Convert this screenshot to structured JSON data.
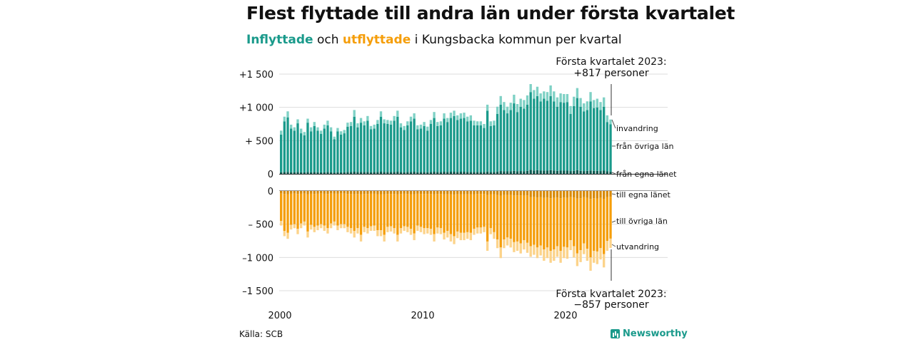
{
  "title": "Flest flyttade till andra län under första kvartalet",
  "subtitle": {
    "part1": "Inflyttade",
    "part2": " och ",
    "part3": "utflyttade",
    "part4": " i Kungsbacka kommun per kvartal"
  },
  "source": "Källa: SCB",
  "logo": "Newsworthy",
  "colors": {
    "in_main": "#1a9a8b",
    "in_light": "#7fd1c5",
    "in_dark": "#0d5b52",
    "out_main": "#f59e0b",
    "out_light": "#fcd38a",
    "out_dark": "#d98a06"
  },
  "chart_data": {
    "type": "bar",
    "stacked": true,
    "x_start": 2000,
    "x_step_label": "kvartal",
    "xticks": [
      "2000",
      "2010",
      "2020"
    ],
    "yticks_top": [
      "+1 500",
      "+1 000",
      "+  500",
      "0"
    ],
    "yticks_bottom": [
      "0",
      "–  500",
      "–1 000",
      "–1 500"
    ],
    "ylim_top": [
      0,
      1500
    ],
    "ylim_bottom": [
      -1500,
      0
    ],
    "grid": true,
    "series_labels": {
      "invandring": "invandring",
      "fran_ovriga": "från övriga län",
      "fran_egna": "från egna länet",
      "till_egna": "till egna länet",
      "till_ovriga": "till övriga län",
      "utvandring": "utvandring"
    },
    "annotation_top": {
      "line1": "Första kvartalet 2023:",
      "line2": "+817 personer"
    },
    "annotation_bottom": {
      "line1": "Första kvartalet 2023:",
      "line2": "−857 personer"
    },
    "in_totals": [
      650,
      860,
      940,
      740,
      700,
      820,
      680,
      630,
      830,
      700,
      780,
      700,
      650,
      740,
      800,
      700,
      560,
      690,
      640,
      660,
      770,
      780,
      960,
      760,
      840,
      790,
      870,
      720,
      740,
      810,
      940,
      820,
      810,
      800,
      870,
      950,
      760,
      720,
      790,
      860,
      910,
      730,
      740,
      780,
      710,
      810,
      930,
      780,
      790,
      910,
      840,
      920,
      950,
      880,
      910,
      920,
      860,
      880,
      800,
      790,
      790,
      750,
      1040,
      790,
      800,
      1010,
      1170,
      1080,
      1010,
      1070,
      1190,
      1050,
      1130,
      1110,
      1180,
      1350,
      1260,
      1310,
      1210,
      1240,
      1230,
      1330,
      1240,
      1150,
      1210,
      1200,
      1200,
      1020,
      1160,
      1290,
      1140,
      1060,
      1090,
      1230,
      1110,
      1130,
      1080,
      1150,
      880,
      817
    ],
    "in_immigration": [
      60,
      70,
      90,
      60,
      50,
      60,
      70,
      50,
      60,
      60,
      60,
      50,
      50,
      60,
      70,
      60,
      40,
      50,
      50,
      50,
      60,
      60,
      100,
      60,
      70,
      60,
      70,
      50,
      60,
      60,
      80,
      60,
      60,
      60,
      70,
      90,
      60,
      60,
      60,
      70,
      80,
      60,
      60,
      60,
      60,
      60,
      90,
      60,
      60,
      80,
      60,
      80,
      80,
      70,
      80,
      80,
      70,
      80,
      70,
      60,
      60,
      60,
      90,
      70,
      70,
      110,
      130,
      120,
      100,
      110,
      130,
      120,
      120,
      130,
      140,
      120,
      130,
      140,
      120,
      110,
      130,
      160,
      150,
      140,
      130,
      130,
      120,
      120,
      140,
      150,
      130,
      120,
      130,
      140,
      120,
      130,
      120,
      140,
      100,
      70
    ],
    "in_own": [
      25,
      28,
      30,
      25,
      25,
      28,
      25,
      22,
      28,
      25,
      28,
      25,
      22,
      25,
      28,
      25,
      20,
      25,
      22,
      25,
      28,
      28,
      32,
      28,
      30,
      28,
      30,
      25,
      28,
      28,
      32,
      28,
      28,
      28,
      30,
      32,
      28,
      25,
      28,
      30,
      32,
      25,
      28,
      28,
      25,
      28,
      32,
      28,
      28,
      32,
      30,
      32,
      32,
      30,
      32,
      32,
      30,
      30,
      28,
      28,
      28,
      28,
      35,
      28,
      28,
      35,
      42,
      40,
      38,
      40,
      45,
      40,
      42,
      40,
      45,
      60,
      50,
      55,
      48,
      50,
      48,
      55,
      50,
      45,
      48,
      48,
      48,
      42,
      45,
      55,
      45,
      42,
      45,
      50,
      45,
      45,
      42,
      48,
      38,
      35
    ],
    "out_totals": [
      520,
      680,
      720,
      580,
      560,
      650,
      560,
      520,
      700,
      580,
      620,
      590,
      560,
      600,
      640,
      560,
      520,
      590,
      560,
      560,
      620,
      640,
      700,
      640,
      760,
      620,
      640,
      600,
      600,
      680,
      680,
      760,
      620,
      610,
      640,
      760,
      640,
      600,
      620,
      660,
      740,
      600,
      620,
      650,
      640,
      660,
      760,
      640,
      650,
      730,
      700,
      760,
      800,
      710,
      740,
      740,
      720,
      740,
      660,
      640,
      640,
      620,
      900,
      650,
      720,
      860,
      1010,
      860,
      820,
      850,
      920,
      900,
      940,
      880,
      930,
      990,
      960,
      1010,
      970,
      1050,
      1010,
      1080,
      1050,
      990,
      1080,
      1010,
      1020,
      890,
      1000,
      1130,
      1070,
      950,
      1050,
      1200,
      1080,
      1100,
      1030,
      1150,
      900,
      857
    ],
    "out_emigration": [
      70,
      80,
      90,
      70,
      60,
      80,
      70,
      60,
      90,
      70,
      80,
      70,
      60,
      80,
      80,
      70,
      60,
      70,
      60,
      60,
      80,
      80,
      100,
      80,
      100,
      80,
      80,
      70,
      80,
      90,
      90,
      100,
      80,
      80,
      80,
      100,
      80,
      70,
      80,
      90,
      100,
      80,
      80,
      90,
      80,
      90,
      110,
      90,
      90,
      100,
      100,
      110,
      120,
      100,
      110,
      110,
      100,
      110,
      90,
      90,
      90,
      80,
      140,
      90,
      100,
      130,
      160,
      130,
      120,
      130,
      150,
      140,
      150,
      140,
      150,
      160,
      150,
      160,
      150,
      170,
      160,
      180,
      170,
      160,
      180,
      170,
      170,
      150,
      170,
      190,
      180,
      160,
      180,
      200,
      180,
      190,
      170,
      200,
      150,
      140
    ],
    "out_own": [
      40,
      45,
      48,
      42,
      40,
      45,
      42,
      40,
      48,
      42,
      45,
      42,
      40,
      42,
      45,
      40,
      38,
      42,
      40,
      40,
      44,
      46,
      50,
      46,
      52,
      44,
      46,
      42,
      42,
      48,
      48,
      52,
      44,
      44,
      46,
      52,
      46,
      42,
      44,
      48,
      52,
      42,
      44,
      46,
      44,
      46,
      52,
      46,
      46,
      52,
      50,
      52,
      55,
      50,
      52,
      52,
      50,
      52,
      48,
      46,
      46,
      44,
      60,
      48,
      52,
      60,
      70,
      62,
      60,
      62,
      68,
      66,
      68,
      64,
      68,
      95,
      90,
      100,
      95,
      105,
      100,
      110,
      105,
      100,
      110,
      100,
      105,
      90,
      100,
      115,
      110,
      95,
      105,
      120,
      110,
      112,
      105,
      118,
      92,
      88
    ]
  }
}
